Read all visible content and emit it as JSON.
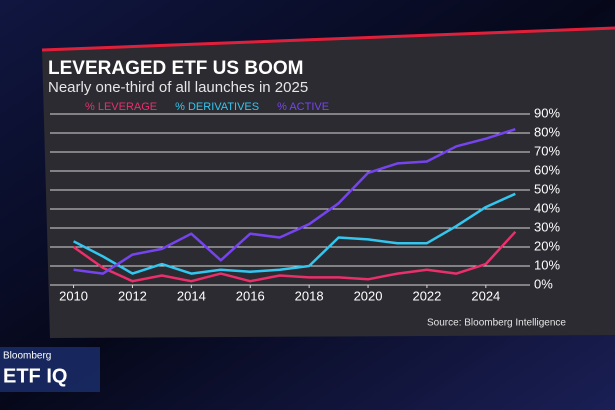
{
  "chart_data": {
    "type": "line",
    "title": "LEVERAGED ETF US BOOM",
    "subtitle": "Nearly one-third of all launches in 2025",
    "source": "Source: Bloomberg Intelligence",
    "x": [
      2010,
      2011,
      2012,
      2013,
      2014,
      2015,
      2016,
      2017,
      2018,
      2019,
      2020,
      2021,
      2022,
      2023,
      2024,
      2025
    ],
    "series": [
      {
        "name": "% LEVERAGE",
        "color": "#ea2f6b",
        "values": [
          20,
          9,
          2,
          5,
          2,
          6,
          2,
          5,
          4,
          4,
          3,
          6,
          8,
          6,
          11,
          28
        ]
      },
      {
        "name": "% DERIVATIVES",
        "color": "#33c6ef",
        "values": [
          23,
          15,
          6,
          11,
          6,
          8,
          7,
          8,
          10,
          25,
          24,
          22,
          22,
          31,
          41,
          48
        ]
      },
      {
        "name": "% ACTIVE",
        "color": "#7644ee",
        "values": [
          8,
          6,
          16,
          19,
          27,
          13,
          27,
          25,
          32,
          43,
          59,
          64,
          65,
          73,
          77,
          82
        ]
      }
    ],
    "xlim": [
      2009.2,
      2025.5
    ],
    "xticks": [
      2010,
      2012,
      2014,
      2016,
      2018,
      2020,
      2022,
      2024
    ],
    "ylim": [
      0,
      90
    ],
    "yticks": [
      {
        "value": 0,
        "label": "0%"
      },
      {
        "value": 10,
        "label": "10%"
      },
      {
        "value": 20,
        "label": "20%"
      },
      {
        "value": 30,
        "label": "30%"
      },
      {
        "value": 40,
        "label": "40%"
      },
      {
        "value": 50,
        "label": "50%"
      },
      {
        "value": 60,
        "label": "60%"
      },
      {
        "value": 70,
        "label": "70%"
      },
      {
        "value": 80,
        "label": "80%"
      },
      {
        "value": 90,
        "label": "90%"
      }
    ],
    "grid": true
  },
  "branding": {
    "network": "Bloomberg",
    "show": "ETF IQ"
  }
}
